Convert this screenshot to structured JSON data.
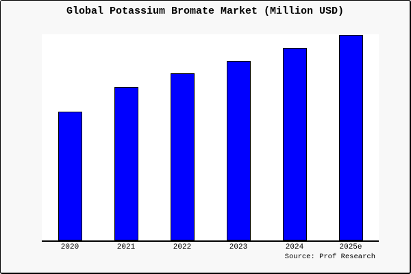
{
  "chart_data": {
    "type": "bar",
    "title": "Global Potassium Bromate Market (Million USD)",
    "categories": [
      "2020",
      "2021",
      "2022",
      "2023",
      "2024",
      "2025e"
    ],
    "values": [
      62.7,
      74.7,
      81.3,
      87.3,
      93.7,
      100
    ],
    "values_note": "Relative bar heights in percent of tallest bar; chart shows no y-axis scale or data labels",
    "xlabel": "",
    "ylabel": "",
    "y_axis_visible": false,
    "gridlines": false,
    "legend": false,
    "source_note": "Source: Prof Research",
    "colors": {
      "bar_fill": "#0000ff",
      "bar_border": "#000000",
      "plot_background": "#ffffff",
      "canvas_background": "#f8f8f8",
      "frame_border": "#000000",
      "axis_line": "#000000",
      "text": "#000000"
    }
  }
}
